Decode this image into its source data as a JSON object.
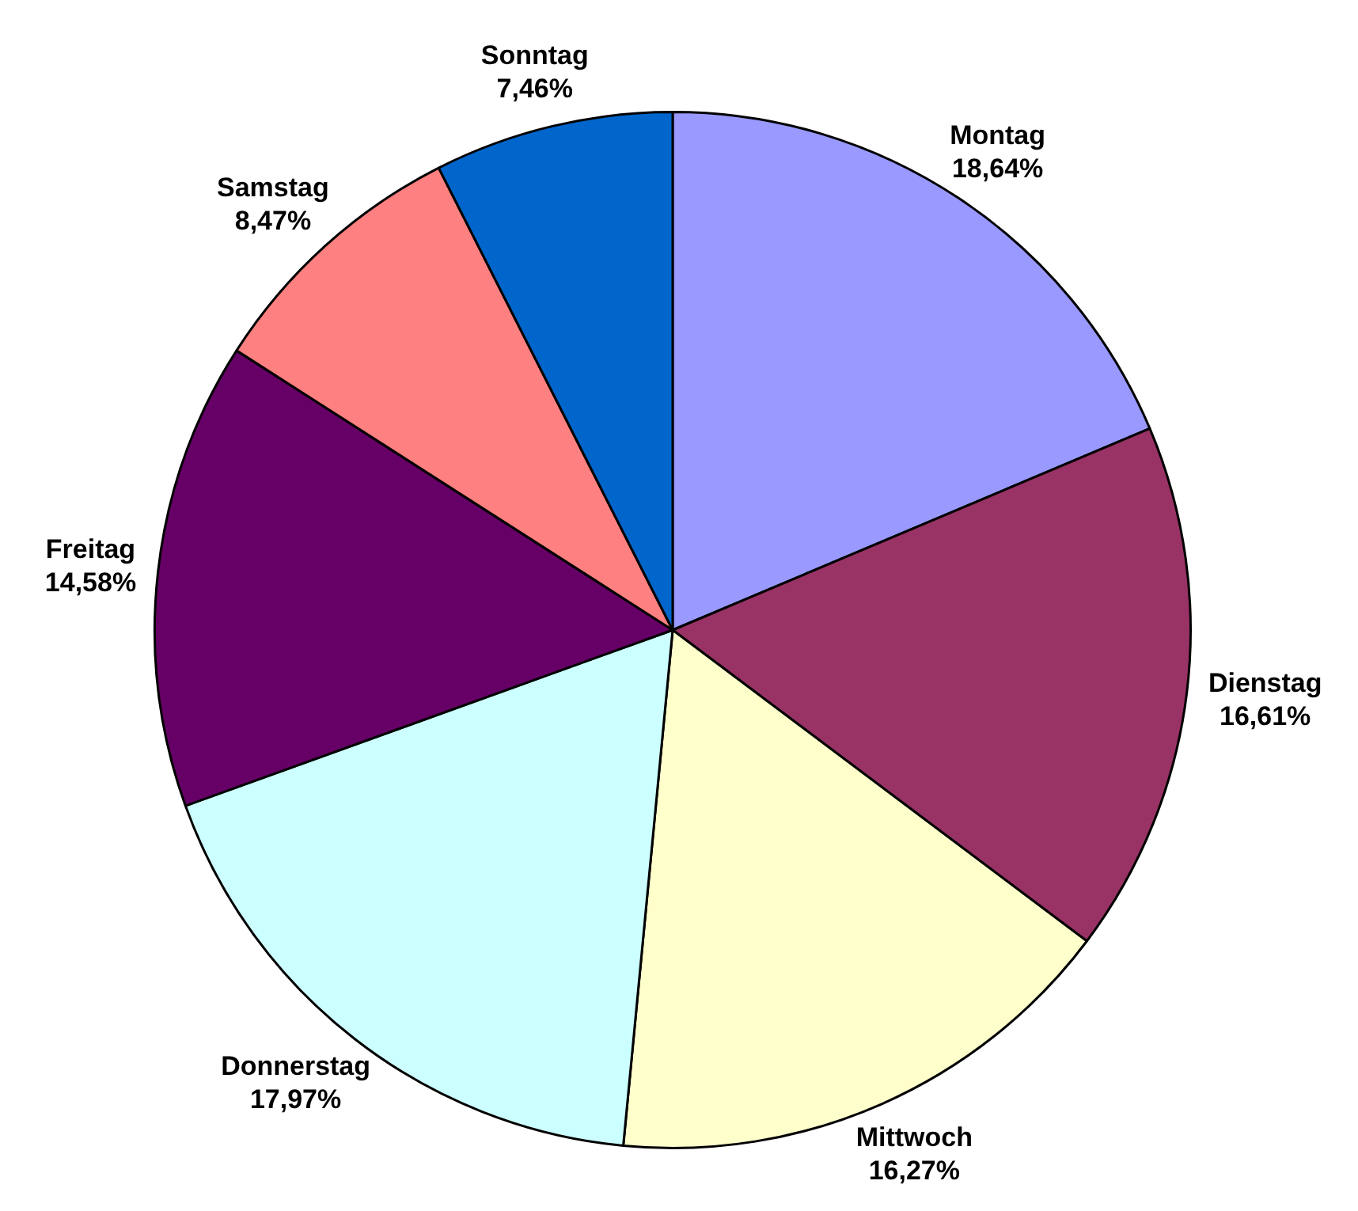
{
  "chart_data": {
    "type": "pie",
    "categories": [
      "Montag",
      "Dienstag",
      "Mittwoch",
      "Donnerstag",
      "Freitag",
      "Samstag",
      "Sonntag"
    ],
    "values": [
      18.64,
      16.61,
      16.27,
      17.97,
      14.58,
      8.47,
      7.46
    ],
    "value_labels": [
      "18,64%",
      "16,61%",
      "16,27%",
      "17,97%",
      "14,58%",
      "8,47%",
      "7,46%"
    ],
    "colors": [
      "#9999ff",
      "#993366",
      "#ffffcc",
      "#ccffff",
      "#660066",
      "#ff8080",
      "#0066cc"
    ]
  }
}
